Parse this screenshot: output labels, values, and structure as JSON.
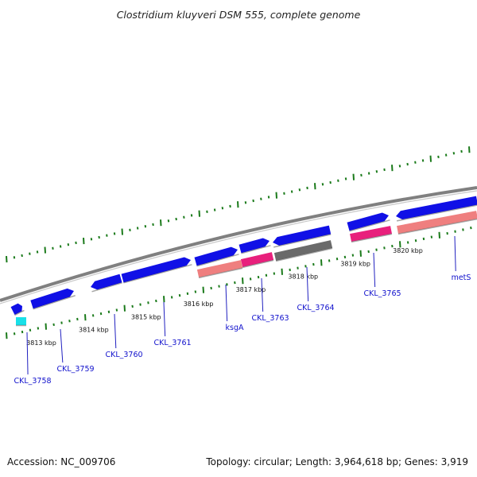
{
  "title": "Clostridium kluyveri DSM 555, complete genome",
  "footer": {
    "accession": "Accession: NC_009706",
    "summary": "Topology: circular; Length: 3,964,618 bp; Genes: 3,919"
  },
  "colors": {
    "background": "#ffffff",
    "backbone": "#808080",
    "ticks": "#1a7a1a",
    "gene_blue": "#1010e6",
    "gene_pink": "#e8207c",
    "gene_salmon": "#ef7f7f",
    "gene_gray": "#6a6a6a",
    "gene_cyan": "#18e0e8",
    "label_text": "#1010cc",
    "leader_line": "#2020c0"
  },
  "kbp_labels": [
    {
      "text": "3813 kbp",
      "kbp": 3813
    },
    {
      "text": "3814 kbp",
      "kbp": 3814
    },
    {
      "text": "3815 kbp",
      "kbp": 3815
    },
    {
      "text": "3816 kbp",
      "kbp": 3816
    },
    {
      "text": "3817 kbp",
      "kbp": 3817
    },
    {
      "text": "3818 kbp",
      "kbp": 3818
    },
    {
      "text": "3819 kbp",
      "kbp": 3819
    },
    {
      "text": "3820 kbp",
      "kbp": 3820
    }
  ],
  "genes": [
    {
      "name": "CKL_3758",
      "color": "gene_blue",
      "track": 1,
      "direction": "forward"
    },
    {
      "name": "CKL_3758",
      "color": "gene_cyan",
      "track": -1,
      "direction": "none"
    },
    {
      "name": "CKL_3759",
      "color": "gene_blue",
      "track": 1,
      "direction": "forward"
    },
    {
      "name": "CKL_3760",
      "color": "gene_blue",
      "track": 1,
      "direction": "reverse"
    },
    {
      "name": "CKL_3761",
      "color": "gene_blue",
      "track": 1,
      "direction": "forward"
    },
    {
      "name": "ksgA",
      "color": "gene_blue",
      "track": 1,
      "direction": "forward"
    },
    {
      "name": "ksgA",
      "color": "gene_salmon",
      "track": -1,
      "direction": "none"
    },
    {
      "name": "CKL_3763",
      "color": "gene_blue",
      "track": 1,
      "direction": "forward"
    },
    {
      "name": "CKL_3763",
      "color": "gene_pink",
      "track": -1,
      "direction": "none"
    },
    {
      "name": "CKL_3764",
      "color": "gene_blue",
      "track": 1,
      "direction": "reverse"
    },
    {
      "name": "CKL_3764",
      "color": "gene_gray",
      "track": -1,
      "direction": "none"
    },
    {
      "name": "CKL_3765",
      "color": "gene_blue",
      "track": 1,
      "direction": "forward"
    },
    {
      "name": "CKL_3765",
      "color": "gene_pink",
      "track": -1,
      "direction": "none"
    },
    {
      "name": "metS",
      "color": "gene_blue",
      "track": 1,
      "direction": "reverse"
    },
    {
      "name": "metS",
      "color": "gene_salmon",
      "track": -1,
      "direction": "none"
    }
  ],
  "gene_labels": [
    {
      "text": "CKL_3758"
    },
    {
      "text": "CKL_3759"
    },
    {
      "text": "CKL_3760"
    },
    {
      "text": "CKL_3761"
    },
    {
      "text": "ksgA"
    },
    {
      "text": "CKL_3763"
    },
    {
      "text": "CKL_3764"
    },
    {
      "text": "CKL_3765"
    },
    {
      "text": "metS"
    }
  ]
}
